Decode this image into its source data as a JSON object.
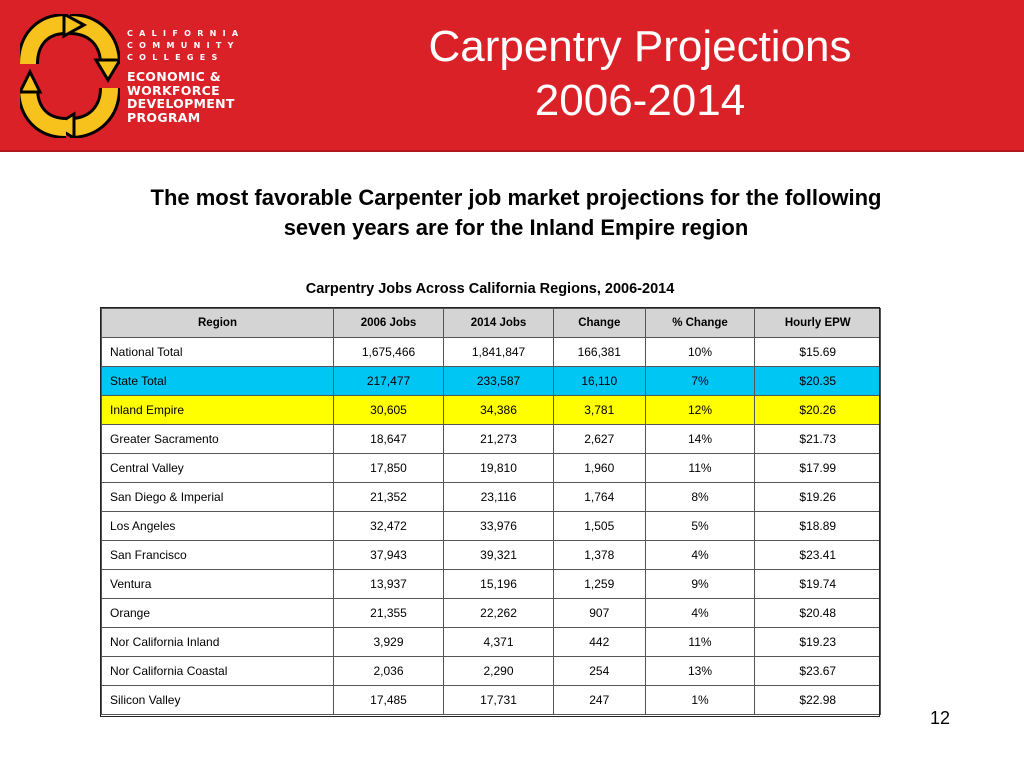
{
  "logo": {
    "line1": "CALIFORNIA",
    "line2": "COMMUNITY",
    "line3": "COLLEGES",
    "line4": "ECONOMIC &",
    "line5": "WORKFORCE",
    "line6": "DEVELOPMENT",
    "line7": "PROGRAM"
  },
  "title": {
    "line1": "Carpentry Projections",
    "line2": "2006-2014"
  },
  "subtitle": {
    "line1": "The most favorable Carpenter job market projections for the following",
    "line2": "seven years are for the Inland Empire region"
  },
  "table": {
    "caption": "Carpentry Jobs Across California Regions, 2006-2014",
    "headers": [
      "Region",
      "2006 Jobs",
      "2014 Jobs",
      "Change",
      "% Change",
      "Hourly EPW"
    ],
    "rows": [
      [
        "National Total",
        "1,675,466",
        "1,841,847",
        "166,381",
        "10%",
        "$15.69"
      ],
      [
        "State Total",
        "217,477",
        "233,587",
        "16,110",
        "7%",
        "$20.35"
      ],
      [
        "Inland Empire",
        "30,605",
        "34,386",
        "3,781",
        "12%",
        "$20.26"
      ],
      [
        "Greater Sacramento",
        "18,647",
        "21,273",
        "2,627",
        "14%",
        "$21.73"
      ],
      [
        "Central Valley",
        "17,850",
        "19,810",
        "1,960",
        "11%",
        "$17.99"
      ],
      [
        "San Diego & Imperial",
        "21,352",
        "23,116",
        "1,764",
        "8%",
        "$19.26"
      ],
      [
        "Los Angeles",
        "32,472",
        "33,976",
        "1,505",
        "5%",
        "$18.89"
      ],
      [
        "San Francisco",
        "37,943",
        "39,321",
        "1,378",
        "4%",
        "$23.41"
      ],
      [
        "Ventura",
        "13,937",
        "15,196",
        "1,259",
        "9%",
        "$19.74"
      ],
      [
        "Orange",
        "21,355",
        "22,262",
        "907",
        "4%",
        "$20.48"
      ],
      [
        "Nor California Inland",
        "3,929",
        "4,371",
        "442",
        "11%",
        "$19.23"
      ],
      [
        "Nor California Coastal",
        "2,036",
        "2,290",
        "254",
        "13%",
        "$23.67"
      ],
      [
        "Silicon Valley",
        "17,485",
        "17,731",
        "247",
        "1%",
        "$22.98"
      ]
    ]
  },
  "page_number": "12",
  "colors": {
    "banner": "#da2128",
    "state_highlight": "#00c6f4",
    "inland_highlight": "#ffff00",
    "header_fill": "#d4d4d4"
  }
}
